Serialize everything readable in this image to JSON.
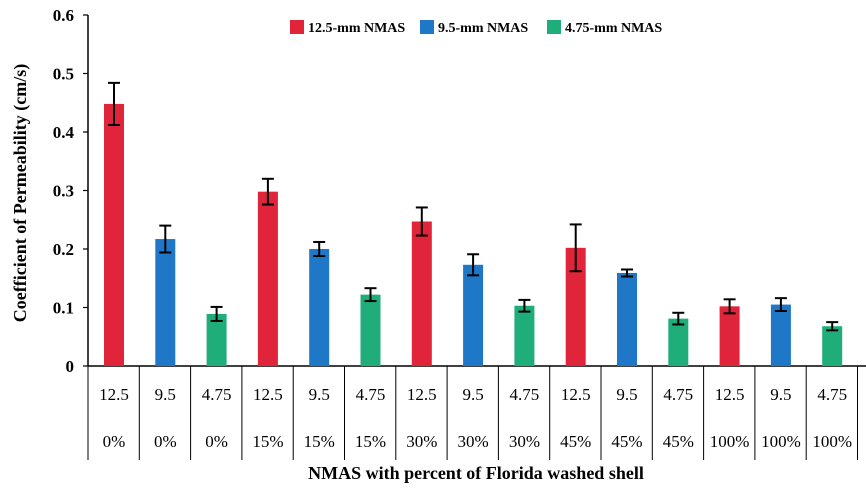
{
  "chart_data": {
    "type": "bar",
    "title": "",
    "xlabel": "NMAS with percent of Florida washed shell",
    "ylabel": "Coefficient of Permeability  (cm/s)",
    "ylim": [
      0,
      0.6
    ],
    "yticks": [
      "0",
      "0.1",
      "0.2",
      "0.3",
      "0.4",
      "0.5",
      "0.6"
    ],
    "grid": false,
    "legend_position": "top-center",
    "series": [
      {
        "name": "12.5-mm NMAS",
        "color": "#e0243a"
      },
      {
        "name": "9.5-mm NMAS",
        "color": "#1f77c8"
      },
      {
        "name": "4.75-mm NMAS",
        "color": "#1fae7a"
      }
    ],
    "categories": [
      {
        "nmas": "12.5",
        "percent": "0%",
        "series": 0,
        "value": 0.448,
        "err": 0.036
      },
      {
        "nmas": "9.5",
        "percent": "0%",
        "series": 1,
        "value": 0.217,
        "err": 0.023
      },
      {
        "nmas": "4.75",
        "percent": "0%",
        "series": 2,
        "value": 0.089,
        "err": 0.012
      },
      {
        "nmas": "12.5",
        "percent": "15%",
        "series": 0,
        "value": 0.298,
        "err": 0.022
      },
      {
        "nmas": "9.5",
        "percent": "15%",
        "series": 1,
        "value": 0.2,
        "err": 0.012
      },
      {
        "nmas": "4.75",
        "percent": "15%",
        "series": 2,
        "value": 0.122,
        "err": 0.011
      },
      {
        "nmas": "12.5",
        "percent": "30%",
        "series": 0,
        "value": 0.247,
        "err": 0.024
      },
      {
        "nmas": "9.5",
        "percent": "30%",
        "series": 1,
        "value": 0.173,
        "err": 0.018
      },
      {
        "nmas": "4.75",
        "percent": "30%",
        "series": 2,
        "value": 0.103,
        "err": 0.01
      },
      {
        "nmas": "12.5",
        "percent": "45%",
        "series": 0,
        "value": 0.202,
        "err": 0.04
      },
      {
        "nmas": "9.5",
        "percent": "45%",
        "series": 1,
        "value": 0.159,
        "err": 0.006
      },
      {
        "nmas": "4.75",
        "percent": "45%",
        "series": 2,
        "value": 0.081,
        "err": 0.01
      },
      {
        "nmas": "12.5",
        "percent": "100%",
        "series": 0,
        "value": 0.102,
        "err": 0.012
      },
      {
        "nmas": "9.5",
        "percent": "100%",
        "series": 1,
        "value": 0.105,
        "err": 0.011
      },
      {
        "nmas": "4.75",
        "percent": "100%",
        "series": 2,
        "value": 0.068,
        "err": 0.007
      }
    ]
  }
}
